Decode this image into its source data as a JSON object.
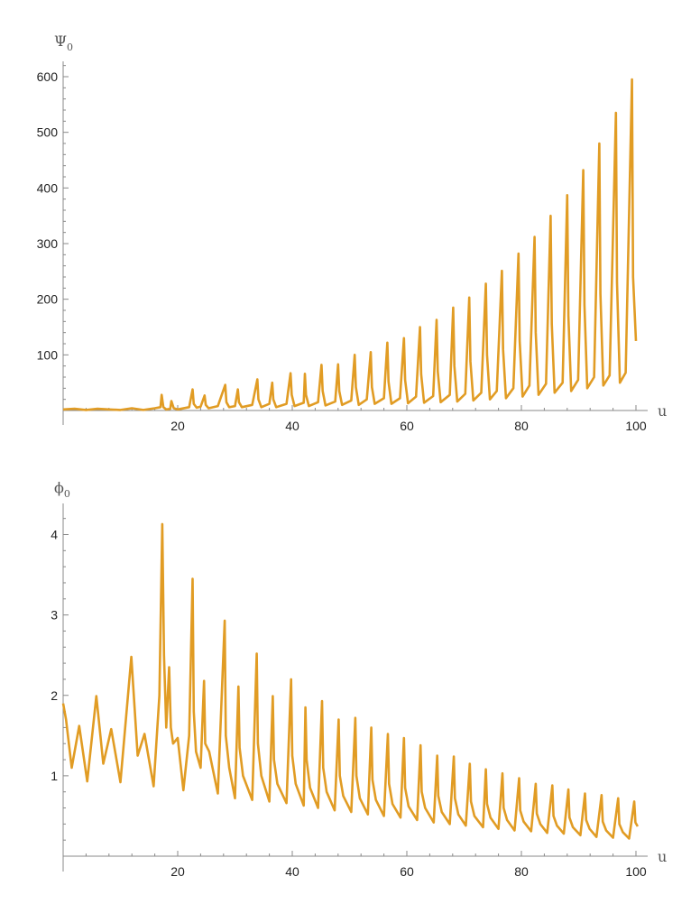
{
  "colors": {
    "series": "#E19C24",
    "axis": "#888888",
    "text": "#222222"
  },
  "chart_data": [
    {
      "type": "line",
      "title": "",
      "xlabel": "u",
      "ylabel": "Ψ",
      "ylabel_sub": "0",
      "xlim": [
        0,
        101.5
      ],
      "ylim": [
        0,
        625
      ],
      "x_ticks": [
        20,
        40,
        60,
        80,
        100
      ],
      "y_ticks": [
        100,
        200,
        300,
        400,
        500,
        600
      ],
      "grid": false,
      "legend": "none",
      "series": [
        {
          "x": [
            0,
            2,
            4,
            6,
            8,
            10,
            12,
            14,
            16,
            17,
            17.2,
            17.5,
            18,
            18.7,
            18.9,
            19.3,
            20,
            22,
            22.6,
            22.8,
            23.3,
            24,
            24.7,
            24.9,
            25.4,
            27,
            28.3,
            28.5,
            29,
            30,
            30.5,
            30.7,
            31.2,
            33,
            33.9,
            34.1,
            34.6,
            36,
            36.5,
            36.7,
            37.2,
            39,
            39.7,
            39.9,
            40.4,
            42,
            42.2,
            42.4,
            42.9,
            44.5,
            45.1,
            45.3,
            45.8,
            47.5,
            48,
            48.2,
            48.7,
            50.3,
            50.9,
            51.1,
            51.6,
            53,
            53.7,
            53.9,
            54.4,
            56,
            56.6,
            56.8,
            57.3,
            58.8,
            59.5,
            59.7,
            60.2,
            61.6,
            62.3,
            62.5,
            63,
            64.6,
            65.2,
            65.4,
            65.9,
            67.5,
            68.1,
            68.3,
            68.8,
            70.2,
            70.9,
            71.1,
            71.6,
            73,
            73.8,
            74,
            74.5,
            75.7,
            76.6,
            76.8,
            77.3,
            78.6,
            79.5,
            79.7,
            80.2,
            81.4,
            82.3,
            82.5,
            83,
            84.3,
            85.1,
            85.3,
            85.8,
            87.2,
            88,
            88.2,
            88.7,
            89.9,
            90.8,
            91,
            91.5,
            92.7,
            93.6,
            93.8,
            94.3,
            95.4,
            96.5,
            96.7,
            97.2,
            98.2,
            99.3,
            99.5,
            100
          ],
          "y": [
            2,
            3,
            1,
            3,
            2,
            1,
            4,
            1,
            4,
            6,
            28,
            6,
            2,
            3,
            17,
            4,
            2,
            6,
            38,
            12,
            5,
            7,
            27,
            10,
            4,
            8,
            46,
            15,
            6,
            8,
            38,
            15,
            6,
            10,
            56,
            20,
            6,
            12,
            50,
            20,
            6,
            12,
            67,
            28,
            8,
            14,
            66,
            28,
            8,
            15,
            82,
            35,
            9,
            16,
            83,
            35,
            10,
            18,
            100,
            42,
            10,
            20,
            105,
            42,
            12,
            22,
            122,
            52,
            12,
            22,
            130,
            55,
            13,
            25,
            150,
            65,
            14,
            26,
            163,
            70,
            15,
            28,
            185,
            80,
            16,
            30,
            203,
            88,
            18,
            32,
            228,
            100,
            20,
            35,
            251,
            110,
            22,
            40,
            282,
            125,
            25,
            45,
            312,
            140,
            28,
            48,
            350,
            155,
            32,
            50,
            387,
            170,
            35,
            55,
            432,
            190,
            40,
            60,
            480,
            210,
            45,
            63,
            535,
            230,
            50,
            68,
            595,
            240,
            125
          ]
        }
      ]
    },
    {
      "type": "line",
      "title": "",
      "xlabel": "u",
      "ylabel": "ϕ",
      "ylabel_sub": "0",
      "xlim": [
        0,
        101.5
      ],
      "ylim": [
        0,
        4.4
      ],
      "x_ticks": [
        20,
        40,
        60,
        80,
        100
      ],
      "y_ticks": [
        1,
        2,
        3,
        4
      ],
      "grid": false,
      "legend": "none",
      "series": [
        {
          "x": [
            0,
            0.5,
            1.5,
            2.8,
            4.2,
            5.8,
            7,
            8.4,
            10,
            11.9,
            13,
            14.2,
            15.8,
            16.8,
            17.3,
            17.6,
            18,
            18.5,
            18.8,
            19.2,
            20,
            21,
            22,
            22.6,
            22.8,
            23.2,
            24,
            24.6,
            24.8,
            25.5,
            27,
            28.2,
            28.4,
            29,
            30,
            30.6,
            30.8,
            31.4,
            33,
            33.8,
            34,
            34.6,
            36,
            36.6,
            36.8,
            37.4,
            39,
            39.8,
            40,
            40.6,
            42,
            42.3,
            42.5,
            43.1,
            44.5,
            45.2,
            45.4,
            46,
            47.4,
            48.1,
            48.3,
            48.9,
            50.3,
            51,
            51.2,
            51.8,
            53.2,
            53.8,
            54,
            54.6,
            56,
            56.7,
            56.9,
            57.5,
            58.9,
            59.5,
            59.7,
            60.3,
            61.8,
            62.4,
            62.6,
            63.2,
            64.7,
            65.3,
            65.5,
            66.1,
            67.5,
            68.2,
            68.4,
            69,
            70.3,
            71,
            71.2,
            71.8,
            73.3,
            73.8,
            74,
            74.6,
            76,
            76.7,
            76.9,
            77.5,
            78.8,
            79.6,
            79.8,
            80.4,
            81.7,
            82.5,
            82.7,
            83.3,
            84.5,
            85.4,
            85.6,
            86.2,
            87.4,
            88.2,
            88.4,
            89,
            90.3,
            91.1,
            91.3,
            91.9,
            93.1,
            94,
            94.2,
            94.8,
            96,
            96.9,
            97.1,
            97.7,
            98.8,
            99.7,
            99.9,
            100.3
          ],
          "y": [
            1.9,
            1.7,
            1.1,
            1.62,
            0.93,
            1.99,
            1.15,
            1.58,
            0.92,
            2.48,
            1.25,
            1.52,
            0.87,
            2.0,
            4.13,
            2.5,
            1.6,
            2.35,
            1.6,
            1.4,
            1.47,
            0.82,
            1.5,
            3.45,
            1.8,
            1.3,
            1.1,
            2.18,
            1.4,
            1.3,
            0.78,
            2.93,
            1.5,
            1.1,
            0.72,
            2.11,
            1.35,
            1.0,
            0.7,
            2.52,
            1.4,
            1.0,
            0.68,
            1.99,
            1.2,
            0.9,
            0.66,
            2.2,
            1.25,
            0.9,
            0.63,
            1.85,
            1.2,
            0.85,
            0.6,
            1.93,
            1.1,
            0.8,
            0.57,
            1.7,
            1.0,
            0.75,
            0.55,
            1.72,
            1.0,
            0.72,
            0.52,
            1.6,
            0.95,
            0.7,
            0.5,
            1.52,
            0.9,
            0.65,
            0.48,
            1.47,
            0.85,
            0.62,
            0.45,
            1.38,
            0.8,
            0.6,
            0.42,
            1.25,
            0.75,
            0.55,
            0.4,
            1.24,
            0.72,
            0.52,
            0.38,
            1.15,
            0.68,
            0.5,
            0.36,
            1.08,
            0.65,
            0.48,
            0.34,
            1.03,
            0.6,
            0.45,
            0.32,
            0.97,
            0.57,
            0.43,
            0.31,
            0.9,
            0.53,
            0.4,
            0.29,
            0.88,
            0.5,
            0.38,
            0.28,
            0.83,
            0.48,
            0.36,
            0.26,
            0.78,
            0.45,
            0.34,
            0.24,
            0.76,
            0.43,
            0.32,
            0.23,
            0.72,
            0.4,
            0.3,
            0.22,
            0.68,
            0.42,
            0.37
          ]
        }
      ]
    }
  ]
}
